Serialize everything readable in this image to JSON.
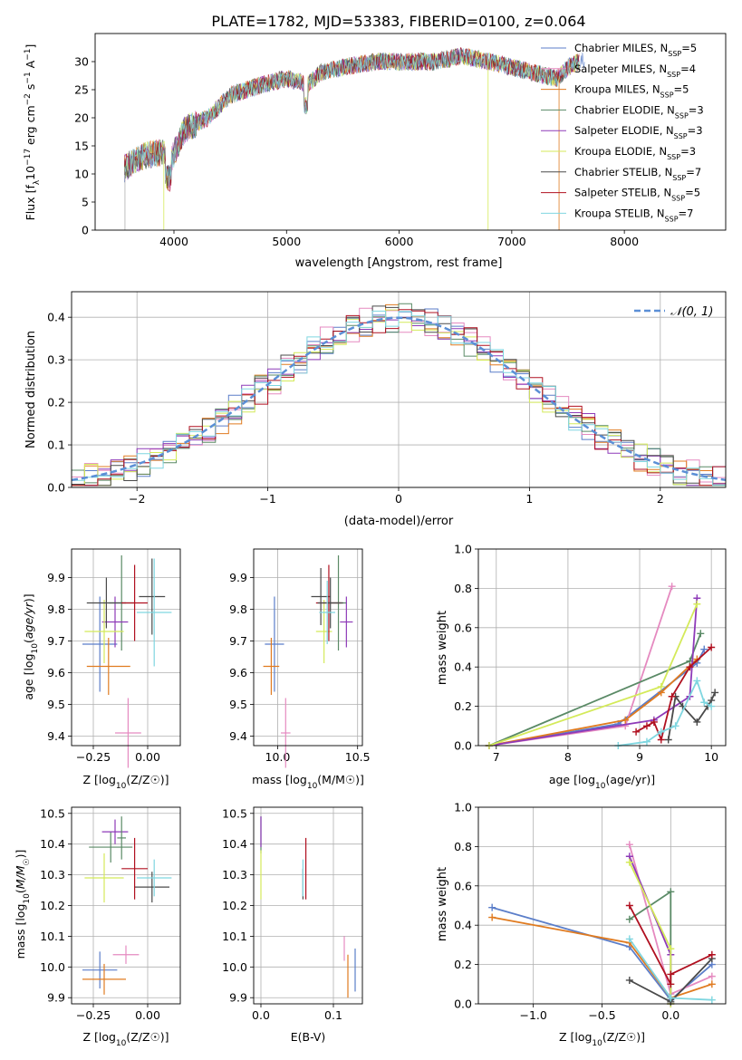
{
  "chart_data": [
    {
      "type": "line",
      "title": "PLATE=1782, MJD=53383, FIBERID=0100, z=0.064",
      "xlabel": "wavelength [Angstrom, rest frame]",
      "ylabel": "Flux [f_λ 10^-17 erg cm^-2 s^-1 A^-1]",
      "xlim": [
        3300,
        8900
      ],
      "ylim": [
        0,
        35
      ],
      "xticks": [
        "4000",
        "5000",
        "6000",
        "7000",
        "8000"
      ],
      "yticks": [
        "0",
        "5",
        "10",
        "15",
        "20",
        "25",
        "30"
      ],
      "legend_placement": "right",
      "grid": false,
      "series": [
        {
          "name": "Chabrier MILES, N_SSP=5",
          "label_main": "Chabrier MILES, N",
          "label_sub": "SSP",
          "label_end": "=5",
          "color": "#5b7ec9"
        },
        {
          "name": "Salpeter MILES, N_SSP=4",
          "label_main": "Salpeter MILES, N",
          "label_sub": "SSP",
          "label_end": "=4",
          "color": "#e58ac0"
        },
        {
          "name": "Kroupa MILES, N_SSP=5",
          "label_main": "Kroupa MILES, N",
          "label_sub": "SSP",
          "label_end": "=5",
          "color": "#e07b20"
        },
        {
          "name": "Chabrier ELODIE, N_SSP=3",
          "label_main": "Chabrier ELODIE, N",
          "label_sub": "SSP",
          "label_end": "=3",
          "color": "#5a8a66"
        },
        {
          "name": "Salpeter ELODIE, N_SSP=3",
          "label_main": "Salpeter ELODIE, N",
          "label_sub": "SSP",
          "label_end": "=3",
          "color": "#8e3ab8"
        },
        {
          "name": "Kroupa ELODIE, N_SSP=3",
          "label_main": "Kroupa ELODIE, N",
          "label_sub": "SSP",
          "label_end": "=3",
          "color": "#d4ea5a"
        },
        {
          "name": "Chabrier STELIB, N_SSP=7",
          "label_main": "Chabrier STELIB, N",
          "label_sub": "SSP",
          "label_end": "=7",
          "color": "#4a4a4a"
        },
        {
          "name": "Salpeter STELIB, N_SSP=5",
          "label_main": "Salpeter STELIB, N",
          "label_sub": "SSP",
          "label_end": "=5",
          "color": "#b01020"
        },
        {
          "name": "Kroupa STELIB, N_SSP=7",
          "label_main": "Kroupa STELIB, N",
          "label_sub": "SSP",
          "label_end": "=7",
          "color": "#7fd6e0"
        }
      ],
      "spectrum_wavelength": [
        3560,
        3700,
        3900,
        3960,
        4100,
        4300,
        4500,
        4800,
        5000,
        5200,
        5300,
        5500,
        5800,
        6000,
        6300,
        6560,
        6800,
        7000,
        7200,
        7400,
        7500,
        7600
      ],
      "spectrum_flux": [
        11,
        13,
        14,
        12,
        18,
        20,
        24,
        26,
        27,
        26,
        28,
        29,
        30,
        30,
        30,
        31,
        30,
        29,
        28,
        27,
        29,
        30
      ]
    },
    {
      "type": "histogram",
      "xlabel": "(data-model)/error",
      "ylabel": "Normed distribution",
      "xlim": [
        -2.5,
        2.5
      ],
      "ylim": [
        0,
        0.46
      ],
      "xticks": [
        "−2",
        "−1",
        "0",
        "1",
        "2"
      ],
      "yticks": [
        "0.0",
        "0.1",
        "0.2",
        "0.3",
        "0.4"
      ],
      "grid": true,
      "legend_placement": "top-right",
      "reference_label": "𝒩(0, 1)",
      "reference_color": "#5b8fd6"
    },
    {
      "type": "scatter",
      "xlabel_main": "Z [log",
      "xlabel_sub": "10",
      "xlabel_end": "(Z/Z☉)]",
      "ylabel": "age  [log10(age/yr)]",
      "xlim": [
        -0.35,
        0.15
      ],
      "ylim": [
        9.37,
        9.99
      ],
      "xticks": [
        "−0.25",
        "0.00"
      ],
      "yticks": [
        "9.4",
        "9.5",
        "9.6",
        "9.7",
        "9.8",
        "9.9"
      ],
      "grid": true,
      "points": [
        {
          "x": -0.22,
          "y": 9.69,
          "xerr": 0.08,
          "yerr": 0.15,
          "color": "#5b7ec9"
        },
        {
          "x": -0.09,
          "y": 9.41,
          "xerr": 0.06,
          "yerr": 0.11,
          "color": "#e58ac0"
        },
        {
          "x": -0.18,
          "y": 9.62,
          "xerr": 0.1,
          "yerr": 0.09,
          "color": "#e07b20"
        },
        {
          "x": -0.12,
          "y": 9.82,
          "xerr": 0.06,
          "yerr": 0.15,
          "color": "#5a8a66"
        },
        {
          "x": -0.15,
          "y": 9.76,
          "xerr": 0.06,
          "yerr": 0.08,
          "color": "#8e3ab8"
        },
        {
          "x": -0.2,
          "y": 9.73,
          "xerr": 0.09,
          "yerr": 0.1,
          "color": "#d4ea5a"
        },
        {
          "x": -0.19,
          "y": 9.82,
          "xerr": 0.09,
          "yerr": 0.08,
          "color": "#4a4a4a"
        },
        {
          "x": -0.06,
          "y": 9.82,
          "xerr": 0.06,
          "yerr": 0.12,
          "color": "#b01020"
        },
        {
          "x": 0.02,
          "y": 9.84,
          "xerr": 0.06,
          "yerr": 0.12,
          "color": "#4a4a4a"
        },
        {
          "x": 0.03,
          "y": 9.79,
          "xerr": 0.08,
          "yerr": 0.17,
          "color": "#7fd6e0"
        }
      ]
    },
    {
      "type": "scatter",
      "xlabel_main": "mass [log",
      "xlabel_sub": "10",
      "xlabel_end": "(M/M☉)]",
      "ylabel": "",
      "xlim": [
        9.85,
        10.53
      ],
      "ylim": [
        9.37,
        9.99
      ],
      "xticks": [
        "10.0",
        "10.5"
      ],
      "yticks": [
        "9.4",
        "9.5",
        "9.6",
        "9.7",
        "9.8",
        "9.9"
      ],
      "grid": true,
      "points": [
        {
          "x": 9.98,
          "y": 9.69,
          "xerr": 0.06,
          "yerr": 0.15,
          "color": "#5b7ec9"
        },
        {
          "x": 10.05,
          "y": 9.41,
          "xerr": 0.03,
          "yerr": 0.11,
          "color": "#e58ac0"
        },
        {
          "x": 9.96,
          "y": 9.62,
          "xerr": 0.05,
          "yerr": 0.09,
          "color": "#e07b20"
        },
        {
          "x": 10.38,
          "y": 9.82,
          "xerr": 0.05,
          "yerr": 0.15,
          "color": "#5a8a66"
        },
        {
          "x": 10.43,
          "y": 9.76,
          "xerr": 0.04,
          "yerr": 0.08,
          "color": "#8e3ab8"
        },
        {
          "x": 10.29,
          "y": 9.73,
          "xerr": 0.05,
          "yerr": 0.1,
          "color": "#d4ea5a"
        },
        {
          "x": 10.27,
          "y": 9.84,
          "xerr": 0.06,
          "yerr": 0.09,
          "color": "#4a4a4a"
        },
        {
          "x": 10.32,
          "y": 9.82,
          "xerr": 0.08,
          "yerr": 0.12,
          "color": "#b01020"
        },
        {
          "x": 10.33,
          "y": 9.82,
          "xerr": 0.08,
          "yerr": 0.08,
          "color": "#4a4a4a"
        },
        {
          "x": 10.31,
          "y": 9.79,
          "xerr": 0.05,
          "yerr": 0.1,
          "color": "#7fd6e0"
        }
      ]
    },
    {
      "type": "line",
      "xlabel_main": "age  [log",
      "xlabel_sub": "10",
      "xlabel_end": "(age/yr)]",
      "ylabel": "mass weight",
      "xlim": [
        6.75,
        10.2
      ],
      "ylim": [
        0,
        1
      ],
      "xticks": [
        "7",
        "8",
        "9",
        "10"
      ],
      "yticks": [
        "0.0",
        "0.2",
        "0.4",
        "0.6",
        "0.8",
        "1.0"
      ],
      "grid": true,
      "series": [
        {
          "name": "Chabrier MILES",
          "color": "#5b7ec9",
          "x": [
            6.9,
            8.7,
            9.8,
            9.9
          ],
          "y": [
            0.0,
            0.11,
            0.42,
            0.49
          ]
        },
        {
          "name": "Salpeter MILES",
          "color": "#e58ac0",
          "x": [
            6.9,
            8.8,
            9.45
          ],
          "y": [
            0.0,
            0.1,
            0.81
          ]
        },
        {
          "name": "Kroupa MILES",
          "color": "#e07b20",
          "x": [
            6.9,
            8.8,
            9.3,
            9.8
          ],
          "y": [
            0.0,
            0.13,
            0.27,
            0.44
          ]
        },
        {
          "name": "Chabrier ELODIE",
          "color": "#5a8a66",
          "x": [
            6.9,
            9.7,
            9.85
          ],
          "y": [
            0.0,
            0.43,
            0.57
          ]
        },
        {
          "name": "Salpeter ELODIE",
          "color": "#8e3ab8",
          "x": [
            6.9,
            9.2,
            9.7,
            9.8
          ],
          "y": [
            0.0,
            0.13,
            0.25,
            0.75
          ]
        },
        {
          "name": "Kroupa ELODIE",
          "color": "#d4ea5a",
          "x": [
            6.9,
            9.3,
            9.8
          ],
          "y": [
            0.0,
            0.3,
            0.72
          ]
        },
        {
          "name": "Chabrier STELIB",
          "color": "#4a4a4a",
          "x": [
            9.4,
            9.5,
            9.6,
            9.8,
            9.95,
            10.0,
            10.05
          ],
          "y": [
            0.03,
            0.25,
            0.2,
            0.12,
            0.2,
            0.23,
            0.27
          ]
        },
        {
          "name": "Salpeter STELIB",
          "color": "#b01020",
          "x": [
            8.95,
            9.1,
            9.2,
            9.3,
            9.45,
            9.7,
            10.0
          ],
          "y": [
            0.07,
            0.1,
            0.12,
            0.03,
            0.25,
            0.4,
            0.5
          ]
        },
        {
          "name": "Kroupa STELIB",
          "color": "#7fd6e0",
          "x": [
            8.7,
            9.1,
            9.3,
            9.5,
            9.8,
            9.9,
            10.0
          ],
          "y": [
            0.0,
            0.02,
            0.07,
            0.1,
            0.33,
            0.22,
            0.2
          ]
        }
      ]
    },
    {
      "type": "scatter",
      "xlabel_main": "Z [log",
      "xlabel_sub": "10",
      "xlabel_end": "(Z/Z☉)]",
      "ylabel": "mass [log10(M/M☉)]",
      "xlim": [
        -0.35,
        0.15
      ],
      "ylim": [
        9.88,
        10.52
      ],
      "xticks": [
        "−0.25",
        "0.00"
      ],
      "yticks": [
        "9.9",
        "10.0",
        "10.1",
        "10.2",
        "10.3",
        "10.4",
        "10.5"
      ],
      "grid": true,
      "points": [
        {
          "x": -0.22,
          "y": 9.99,
          "xerr": 0.08,
          "yerr": 0.06,
          "color": "#5b7ec9"
        },
        {
          "x": -0.1,
          "y": 10.04,
          "xerr": 0.06,
          "yerr": 0.03,
          "color": "#e58ac0"
        },
        {
          "x": -0.2,
          "y": 9.96,
          "xerr": 0.1,
          "yerr": 0.05,
          "color": "#e07b20"
        },
        {
          "x": -0.17,
          "y": 10.39,
          "xerr": 0.1,
          "yerr": 0.05,
          "color": "#5a8a66"
        },
        {
          "x": -0.15,
          "y": 10.44,
          "xerr": 0.06,
          "yerr": 0.04,
          "color": "#8e3ab8"
        },
        {
          "x": -0.2,
          "y": 10.29,
          "xerr": 0.09,
          "yerr": 0.08,
          "color": "#d4ea5a"
        },
        {
          "x": 0.02,
          "y": 10.26,
          "xerr": 0.08,
          "yerr": 0.05,
          "color": "#4a4a4a"
        },
        {
          "x": -0.06,
          "y": 10.32,
          "xerr": 0.06,
          "yerr": 0.1,
          "color": "#b01020"
        },
        {
          "x": 0.03,
          "y": 10.29,
          "xerr": 0.08,
          "yerr": 0.06,
          "color": "#7fd6e0"
        },
        {
          "x": -0.12,
          "y": 10.42,
          "xerr": 0.02,
          "yerr": 0.07,
          "color": "#5a8a66"
        }
      ]
    },
    {
      "type": "scatter",
      "xlabel": "E(B-V)",
      "ylabel": "",
      "xlim": [
        -0.01,
        0.14
      ],
      "ylim": [
        9.88,
        10.52
      ],
      "xticks": [
        "0.0",
        "0.1"
      ],
      "yticks": [
        "9.9",
        "10.0",
        "10.1",
        "10.2",
        "10.3",
        "10.4",
        "10.5"
      ],
      "grid": true,
      "points": [
        {
          "x": 0.13,
          "y": 9.99,
          "yerr": 0.07,
          "color": "#5b7ec9"
        },
        {
          "x": 0.115,
          "y": 10.06,
          "yerr": 0.04,
          "color": "#e58ac0"
        },
        {
          "x": 0.12,
          "y": 9.97,
          "yerr": 0.07,
          "color": "#e07b20"
        },
        {
          "x": 0.0,
          "y": 10.43,
          "yerr": 0.06,
          "color": "#5a8a66"
        },
        {
          "x": 0.0,
          "y": 10.44,
          "yerr": 0.05,
          "color": "#8e3ab8"
        },
        {
          "x": 0.0,
          "y": 10.3,
          "yerr": 0.08,
          "color": "#d4ea5a"
        },
        {
          "x": 0.058,
          "y": 10.27,
          "yerr": 0.05,
          "color": "#4a4a4a"
        },
        {
          "x": 0.062,
          "y": 10.32,
          "yerr": 0.1,
          "color": "#b01020"
        },
        {
          "x": 0.058,
          "y": 10.29,
          "yerr": 0.06,
          "color": "#7fd6e0"
        }
      ]
    },
    {
      "type": "line",
      "xlabel_main": "Z [log",
      "xlabel_sub": "10",
      "xlabel_end": "(Z/Z☉)]",
      "ylabel": "mass weight",
      "xlim": [
        -1.4,
        0.4
      ],
      "ylim": [
        0,
        1
      ],
      "xticks": [
        "−1.0",
        "−0.5",
        "0.0"
      ],
      "yticks": [
        "0.0",
        "0.2",
        "0.4",
        "0.6",
        "0.8",
        "1.0"
      ],
      "grid": true,
      "series": [
        {
          "name": "Chabrier MILES",
          "color": "#5b7ec9",
          "x": [
            -1.3,
            -0.3,
            0.0,
            0.3
          ],
          "y": [
            0.49,
            0.29,
            0.02,
            0.2
          ]
        },
        {
          "name": "Salpeter MILES",
          "color": "#e58ac0",
          "x": [
            -0.3,
            0.0,
            0.3
          ],
          "y": [
            0.81,
            0.05,
            0.14
          ]
        },
        {
          "name": "Kroupa MILES",
          "color": "#e07b20",
          "x": [
            -1.3,
            -0.3,
            0.0,
            0.3
          ],
          "y": [
            0.44,
            0.31,
            0.03,
            0.1
          ]
        },
        {
          "name": "Chabrier ELODIE",
          "color": "#5a8a66",
          "x": [
            -0.3,
            0.0,
            0.0
          ],
          "y": [
            0.43,
            0.57,
            0.0
          ]
        },
        {
          "name": "Salpeter ELODIE",
          "color": "#8e3ab8",
          "x": [
            -0.3,
            0.0,
            0.0
          ],
          "y": [
            0.75,
            0.25,
            0.0
          ]
        },
        {
          "name": "Kroupa ELODIE",
          "color": "#d4ea5a",
          "x": [
            -0.3,
            0.0,
            0.0
          ],
          "y": [
            0.72,
            0.28,
            0.0
          ]
        },
        {
          "name": "Chabrier STELIB",
          "color": "#4a4a4a",
          "x": [
            -0.3,
            0.0,
            0.3
          ],
          "y": [
            0.12,
            0.01,
            0.23
          ]
        },
        {
          "name": "Salpeter STELIB",
          "color": "#b01020",
          "x": [
            -0.3,
            0.0,
            0.0,
            0.3
          ],
          "y": [
            0.5,
            0.1,
            0.15,
            0.25
          ]
        },
        {
          "name": "Kroupa STELIB",
          "color": "#7fd6e0",
          "x": [
            -0.3,
            0.0,
            0.3
          ],
          "y": [
            0.33,
            0.03,
            0.02
          ]
        }
      ]
    }
  ]
}
